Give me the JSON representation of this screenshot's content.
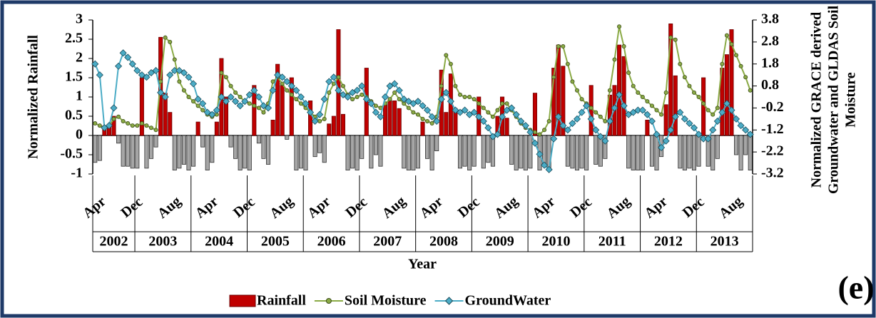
{
  "chart_data": {
    "type": "bar-line",
    "ylabel": "Normalized Rainfall",
    "y2label": [
      "Normalized GRACE derived",
      "Groundwater and GLDAS Soil",
      "Moisture"
    ],
    "xlabel": "Year",
    "annotation": "(e)",
    "categories": [
      "Apr",
      null,
      null,
      null,
      null,
      null,
      null,
      null,
      "Dec",
      null,
      null,
      null,
      null,
      null,
      null,
      null,
      "Aug",
      null,
      null,
      null,
      null,
      null,
      null,
      null,
      "Apr",
      null,
      null,
      null,
      null,
      null,
      null,
      null,
      "Dec",
      null,
      null,
      null,
      null,
      null,
      null,
      null,
      "Aug",
      null,
      null,
      null,
      null,
      null,
      null,
      null,
      "Apr",
      null,
      null,
      null,
      null,
      null,
      null,
      null,
      "Dec",
      null,
      null,
      null,
      null,
      null,
      null,
      null,
      "Aug",
      null,
      null,
      null,
      null,
      null,
      null,
      null,
      "Apr",
      null,
      null,
      null,
      null,
      null,
      null,
      null,
      "Dec",
      null,
      null,
      null,
      null,
      null,
      null,
      null,
      "Aug",
      null,
      null,
      null,
      null,
      null,
      null,
      null,
      "Apr",
      null,
      null,
      null,
      null,
      null,
      null,
      null,
      "Dec",
      null,
      null,
      null,
      null,
      null,
      null,
      null,
      "Aug",
      null,
      null,
      null,
      null,
      null,
      null,
      null,
      "Apr",
      null,
      null,
      null,
      null,
      null,
      null,
      null,
      "Dec",
      null,
      null,
      null,
      null,
      null,
      null,
      null,
      "Aug",
      null,
      null,
      null,
      null
    ],
    "years": [
      "2002",
      "2003",
      "2004",
      "2005",
      "2006",
      "2007",
      "2008",
      "2009",
      "2010",
      "2011",
      "2012",
      "2013"
    ],
    "ylim": [
      -1,
      3
    ],
    "yticks": [
      -1,
      -0.5,
      0,
      0.5,
      1,
      1.5,
      2,
      2.5,
      3
    ],
    "y2lim": [
      -3.2,
      3.8
    ],
    "y2ticks": [
      -3.2,
      -2.2,
      -1.2,
      -0.2,
      0.8,
      1.8,
      2.8,
      3.8
    ],
    "series": [
      {
        "name": "Rainfall",
        "type": "bar",
        "color": "#c00000",
        "negative_color": "#a6a6a6",
        "values": [
          -0.7,
          -0.65,
          0.25,
          0.25,
          0.5,
          -0.2,
          -0.8,
          -0.8,
          -0.85,
          -0.85,
          1.5,
          -0.85,
          -0.6,
          -0.3,
          2.55,
          1.1,
          0.6,
          -0.9,
          -0.85,
          -0.75,
          -0.9,
          -0.8,
          0.35,
          -0.3,
          -0.9,
          -0.7,
          0.35,
          2.0,
          1.0,
          -0.3,
          -0.6,
          -0.9,
          -0.85,
          -0.9,
          1.3,
          -0.2,
          -0.6,
          -0.75,
          0.4,
          1.85,
          1.3,
          -0.1,
          1.5,
          -0.9,
          -0.85,
          -0.9,
          0.9,
          -0.55,
          -0.45,
          -0.7,
          0.3,
          0.5,
          2.75,
          0.55,
          -0.9,
          -0.85,
          -0.9,
          -0.6,
          1.75,
          -0.85,
          -0.5,
          -0.8,
          0.8,
          0.9,
          0.9,
          0.7,
          -0.85,
          -0.9,
          -0.9,
          -0.85,
          0.35,
          -0.6,
          -0.9,
          -0.4,
          1.7,
          0.6,
          1.6,
          0.7,
          -0.85,
          -0.8,
          -0.9,
          -0.8,
          1.0,
          -0.85,
          -0.7,
          -0.8,
          0.5,
          1.0,
          0.45,
          -0.75,
          -0.9,
          -0.85,
          -0.9,
          -0.85,
          1.1,
          -0.9,
          -0.8,
          -0.85,
          1.75,
          2.35,
          1.8,
          -0.8,
          -0.85,
          -0.9,
          -0.85,
          -0.9,
          1.3,
          -0.75,
          -0.8,
          -0.6,
          1.05,
          1.3,
          2.35,
          2.05,
          -0.85,
          -0.9,
          -0.9,
          -0.9,
          0.4,
          -0.8,
          -0.9,
          -0.55,
          0.8,
          2.9,
          1.55,
          -0.85,
          -0.9,
          -0.85,
          -0.9,
          -0.8,
          1.5,
          -0.8,
          -0.9,
          -0.6,
          1.75,
          2.1,
          2.75,
          -0.5,
          -0.9,
          -0.5,
          -0.9
        ]
      },
      {
        "name": "Soil Moisture",
        "type": "line",
        "axis": "y2",
        "color": "#8aaa45",
        "marker": "circle",
        "values": [
          -0.9,
          -1.0,
          -1.1,
          -1.0,
          -0.7,
          -0.6,
          -0.8,
          -0.9,
          -1.0,
          -1.0,
          -0.9,
          -1.0,
          -1.1,
          -1.2,
          1.0,
          3.0,
          2.8,
          2.0,
          1.0,
          0.6,
          0.3,
          0.1,
          -0.1,
          -0.3,
          -0.5,
          -0.6,
          -0.5,
          1.4,
          1.2,
          0.8,
          0.5,
          0.3,
          0.1,
          0.0,
          -0.1,
          -0.2,
          -0.4,
          0.0,
          1.0,
          1.2,
          0.9,
          0.6,
          0.4,
          0.2,
          0.0,
          -0.2,
          -0.4,
          -0.6,
          -0.8,
          -0.7,
          0.5,
          0.9,
          1.2,
          0.8,
          0.4,
          0.2,
          0.3,
          0.4,
          0.3,
          0.1,
          -0.1,
          -0.2,
          0.0,
          0.2,
          0.5,
          0.2,
          0.0,
          -0.2,
          -0.4,
          -0.5,
          -0.7,
          -0.8,
          -0.9,
          -0.6,
          0.8,
          2.2,
          1.8,
          0.8,
          0.4,
          0.3,
          0.3,
          0.2,
          0.0,
          -0.2,
          -0.4,
          -0.6,
          -0.3,
          0.0,
          0.0,
          -0.3,
          -0.6,
          -0.9,
          -1.1,
          -1.2,
          -1.3,
          -1.4,
          -1.2,
          -0.8,
          1.2,
          2.6,
          2.6,
          1.8,
          1.0,
          0.6,
          0.2,
          0.0,
          -0.2,
          -0.4,
          -0.6,
          -0.8,
          0.6,
          2.0,
          3.5,
          2.6,
          1.4,
          0.8,
          0.5,
          0.3,
          0.1,
          -0.1,
          -0.3,
          -0.5,
          0.5,
          3.0,
          2.9,
          1.8,
          1.2,
          0.8,
          0.5,
          0.3,
          0.0,
          -0.3,
          -0.5,
          -0.2,
          1.8,
          3.1,
          2.7,
          2.2,
          1.7,
          1.2,
          0.6
        ]
      },
      {
        "name": "GroundWater",
        "type": "line",
        "axis": "y2",
        "color": "#4bacc6",
        "marker": "diamond",
        "values": [
          1.8,
          1.3,
          -1.1,
          -1.0,
          -0.2,
          1.7,
          2.3,
          2.1,
          1.8,
          1.5,
          1.3,
          1.2,
          1.4,
          1.5,
          0.5,
          0.3,
          1.3,
          1.5,
          1.5,
          1.4,
          1.2,
          0.9,
          0.2,
          0.0,
          -0.4,
          -0.5,
          -0.3,
          0.3,
          0.1,
          0.3,
          0.1,
          -0.1,
          0.1,
          0.4,
          0.6,
          0.3,
          -0.1,
          -0.2,
          0.6,
          1.3,
          1.2,
          1.0,
          0.8,
          0.6,
          0.3,
          0.0,
          -0.4,
          -0.8,
          -0.5,
          0.2,
          1.0,
          1.2,
          0.6,
          0.4,
          0.3,
          0.5,
          0.6,
          0.8,
          0.2,
          0.0,
          -0.4,
          -0.6,
          0.3,
          0.8,
          0.9,
          0.6,
          0.2,
          0.1,
          0.0,
          0.1,
          -0.1,
          -0.3,
          -0.6,
          -0.8,
          0.2,
          0.5,
          0.1,
          -0.3,
          -0.4,
          -0.3,
          -0.5,
          -0.4,
          -0.6,
          -0.8,
          -1.1,
          -1.5,
          -1.4,
          -0.6,
          -0.3,
          -0.2,
          -0.5,
          -0.8,
          -1.0,
          -1.3,
          -1.8,
          -2.3,
          -2.8,
          -3.0,
          -1.6,
          -0.6,
          -1.0,
          -1.2,
          -0.9,
          -0.7,
          -0.4,
          -0.1,
          -0.7,
          -1.2,
          -1.5,
          -1.7,
          -0.8,
          -0.2,
          0.4,
          -0.1,
          -0.5,
          -0.4,
          -0.3,
          -0.3,
          -0.5,
          -0.8,
          -1.4,
          -2.0,
          -1.7,
          -1.2,
          -0.6,
          -0.4,
          -0.7,
          -0.9,
          -1.1,
          -1.4,
          -1.6,
          -1.6,
          -1.2,
          -0.8,
          -0.4,
          0.0,
          -0.3,
          -0.7,
          -1.0,
          -1.2,
          -1.4
        ]
      }
    ]
  }
}
